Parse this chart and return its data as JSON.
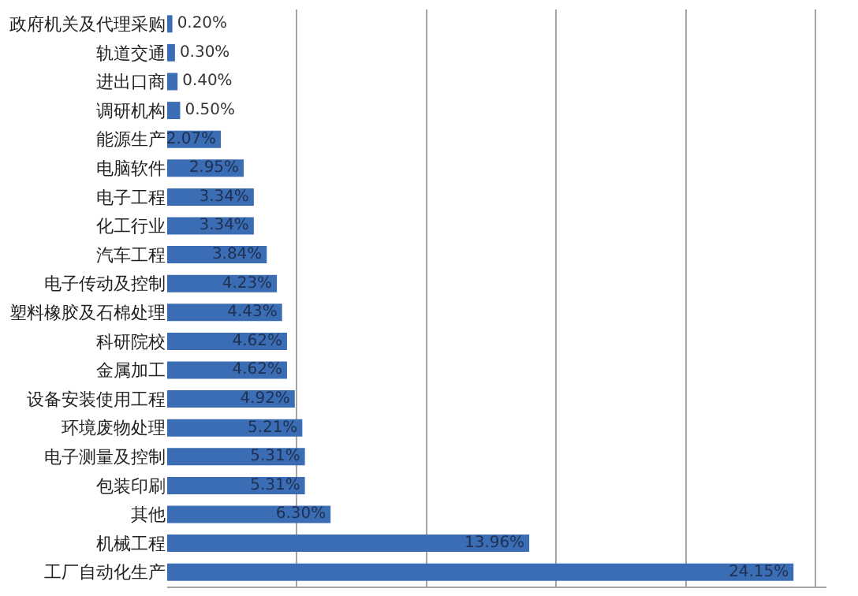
{
  "chart_data": {
    "type": "bar",
    "orientation": "horizontal",
    "categories": [
      "政府机关及代理采购",
      "轨道交通",
      "进出口商",
      "调研机构",
      "能源生产",
      "电脑软件",
      "电子工程",
      "化工行业",
      "汽车工程",
      "电子传动及控制",
      "塑料橡胶及石棉处理",
      "科研院校",
      "金属加工",
      "设备安装使用工程",
      "环境废物处理",
      "电子测量及控制",
      "包装印刷",
      "其他",
      "机械工程",
      "工厂自动化生产"
    ],
    "values": [
      0.2,
      0.3,
      0.4,
      0.5,
      2.07,
      2.95,
      3.34,
      3.34,
      3.84,
      4.23,
      4.43,
      4.62,
      4.62,
      4.92,
      5.21,
      5.31,
      5.31,
      6.3,
      13.96,
      24.15
    ],
    "value_labels": [
      "0.20%",
      "0.30%",
      "0.40%",
      "0.50%",
      "2.07%",
      "2.95%",
      "3.34%",
      "3.34%",
      "3.84%",
      "4.23%",
      "4.43%",
      "4.62%",
      "4.62%",
      "4.92%",
      "5.21%",
      "5.31%",
      "5.31%",
      "6.30%",
      "13.96%",
      "24.15%"
    ],
    "color": "#3b6db4",
    "tick_labels": "y",
    "grid": "x",
    "legend": false
  }
}
